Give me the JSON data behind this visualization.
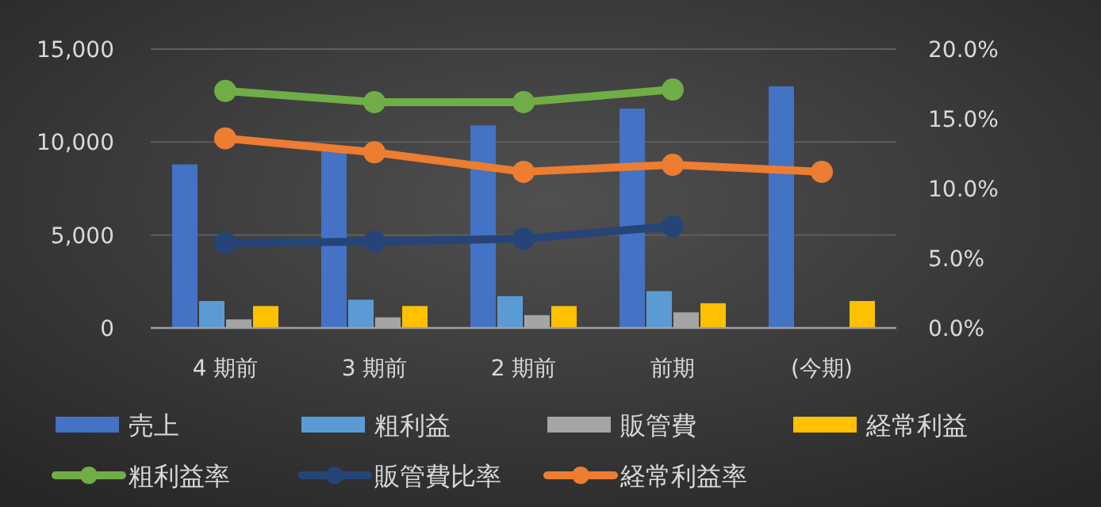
{
  "chart_data": {
    "type": "bar",
    "categories": [
      "4 期前",
      "3 期前",
      "2 期前",
      "前期",
      "(今期)"
    ],
    "series": [
      {
        "name": "売上",
        "color": "#4472c4",
        "values": [
          8800,
          9500,
          10900,
          11800,
          13000
        ]
      },
      {
        "name": "粗利益",
        "color": "#5b9bd5",
        "values": [
          1450,
          1520,
          1710,
          1980,
          null
        ]
      },
      {
        "name": "販管費",
        "color": "#a5a5a5",
        "values": [
          460,
          570,
          690,
          840,
          null
        ]
      },
      {
        "name": "経常利益",
        "color": "#ffc000",
        "values": [
          1180,
          1180,
          1180,
          1330,
          1450
        ]
      },
      {
        "name": "粗利益率",
        "type": "line",
        "axis": "y2",
        "color": "#70ad47",
        "values": [
          17.0,
          16.2,
          16.2,
          17.1,
          null
        ]
      },
      {
        "name": "販管費比率",
        "type": "line",
        "axis": "y2",
        "color": "#264478",
        "values": [
          6.1,
          6.2,
          6.4,
          7.3,
          null
        ]
      },
      {
        "name": "経常利益率",
        "type": "line",
        "axis": "y2",
        "color": "#ed7d31",
        "values": [
          13.6,
          12.6,
          11.2,
          11.7,
          11.2
        ]
      }
    ],
    "ylim": [
      0,
      15000
    ],
    "yticks": [
      0,
      {
        "value": 5000,
        "label": "5,000"
      },
      {
        "value": 10000,
        "label": "10,000"
      },
      {
        "value": 15000,
        "label": "15,000"
      }
    ],
    "y2lim": [
      0,
      20
    ],
    "y2ticks": [
      {
        "value": 0,
        "label": "0.0%"
      },
      {
        "value": 5,
        "label": "5.0%"
      },
      {
        "value": 10,
        "label": "10.0%"
      },
      {
        "value": 15,
        "label": "15.0%"
      },
      {
        "value": 20,
        "label": "20.0%"
      }
    ],
    "grid": "y",
    "legend": "bottom",
    "marker": "circle"
  }
}
